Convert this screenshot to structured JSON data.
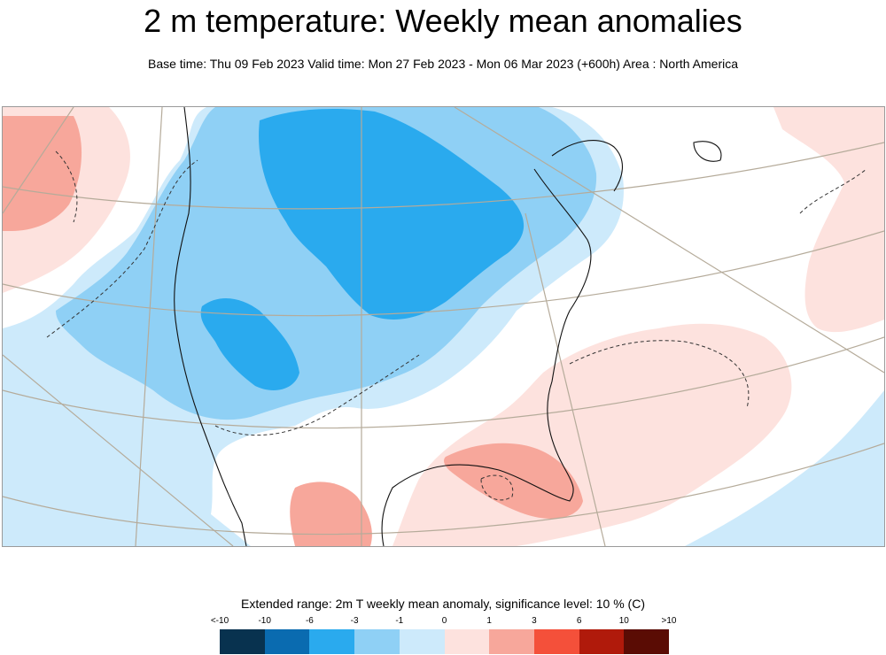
{
  "header": {
    "title": "2 m temperature: Weekly mean anomalies",
    "subtitle": "Base time: Thu 09 Feb 2023 Valid time: Mon 27 Feb 2023 - Mon 06 Mar 2023 (+600h) Area : North America"
  },
  "map": {
    "region": "North America",
    "shading": {
      "west_and_central_us_canada": "cold anomaly (blue)",
      "southeast_us_gulf_atlantic": "warm anomaly (red)",
      "northeast_pacific_greenland": "warm anomaly (red)",
      "east_pacific_south": "slight cold anomaly (light blue)"
    }
  },
  "legend": {
    "title": "Extended range: 2m T weekly mean anomaly, significance level: 10 % (C)",
    "tick_labels": [
      "<-10",
      "-10",
      "-6",
      "-3",
      "-1",
      "0",
      "1",
      "3",
      "6",
      "10",
      ">10"
    ],
    "colors": [
      "#08324f",
      "#0a6bb0",
      "#2aaaee",
      "#8fd0f5",
      "#cdeafb",
      "#fde2de",
      "#f7a79b",
      "#f4503a",
      "#b01a0b",
      "#5a0c04"
    ]
  }
}
